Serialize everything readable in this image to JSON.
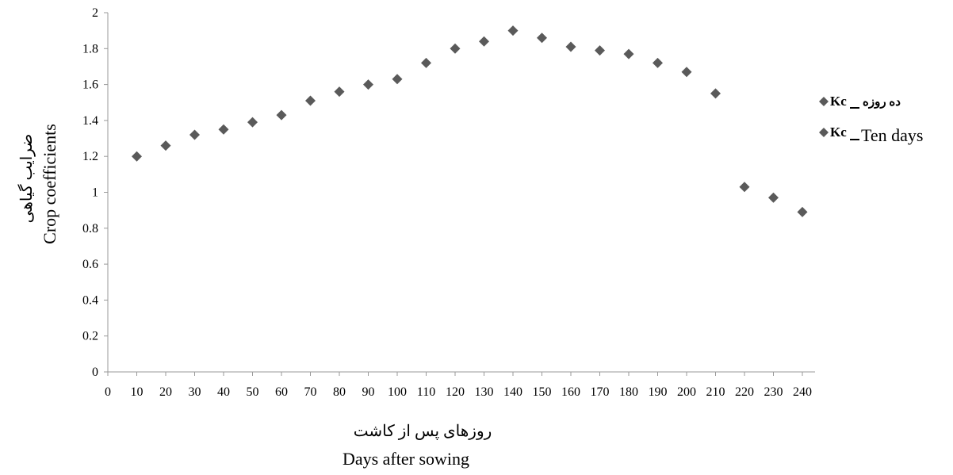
{
  "chart_data": {
    "type": "scatter",
    "xlabel_fa": "روزهای پس از کاشت",
    "xlabel": "Days after sowing",
    "ylabel_fa": "ضرایب گیاهی",
    "ylabel": "Crop coefficients",
    "xlim": [
      0,
      240
    ],
    "ylim": [
      0,
      2
    ],
    "x_ticks": [
      0,
      10,
      20,
      30,
      40,
      50,
      60,
      70,
      80,
      90,
      100,
      110,
      120,
      130,
      140,
      150,
      160,
      170,
      180,
      190,
      200,
      210,
      220,
      230,
      240
    ],
    "y_ticks": [
      0,
      0.2,
      0.4,
      0.6,
      0.8,
      1,
      1.2,
      1.4,
      1.6,
      1.8,
      2
    ],
    "grid": false,
    "legend_position": "right",
    "legend": [
      {
        "prefix": "Kc",
        "text": "ده روزه"
      },
      {
        "prefix": "Kc",
        "text": "Ten days"
      }
    ],
    "marker_color": "#5a5a5a",
    "series": [
      {
        "x": [
          10,
          20,
          30,
          40,
          50,
          60,
          70,
          80,
          90,
          100,
          110,
          120,
          130,
          140,
          150,
          160,
          170,
          180,
          190,
          200,
          210,
          220,
          230,
          240
        ],
        "y": [
          1.2,
          1.26,
          1.32,
          1.35,
          1.39,
          1.43,
          1.51,
          1.56,
          1.6,
          1.63,
          1.72,
          1.8,
          1.84,
          1.9,
          1.86,
          1.81,
          1.79,
          1.77,
          1.72,
          1.67,
          1.55,
          1.03,
          0.97,
          0.89
        ]
      }
    ]
  }
}
